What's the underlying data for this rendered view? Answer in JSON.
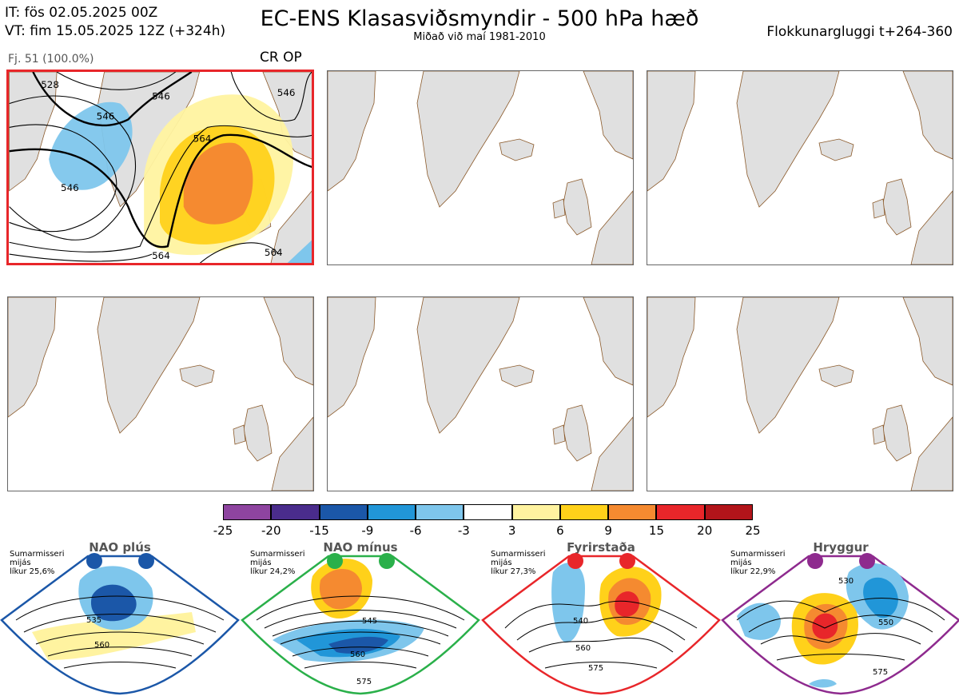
{
  "header": {
    "title": "EC-ENS Klasasviðsmyndir - 500 hPa hæð",
    "subtitle": "Miðað við maí 1981-2010",
    "initial_time": "IT: fös 02.05.2025 00Z",
    "valid_time": "VT: fim 15.05.2025 12Z  (+324h)",
    "cluster_window": "Flokkunargluggi t+264-360"
  },
  "panel1": {
    "member_label": "Fj. 51 (100.0%)",
    "tag": "CR OP",
    "contour_labels": [
      "546",
      "546",
      "546",
      "564",
      "564",
      "564",
      "528",
      "546"
    ]
  },
  "colorbar": {
    "ticks": [
      "-25",
      "-20",
      "-15",
      "-9",
      "-6",
      "-3",
      "3",
      "6",
      "9",
      "15",
      "20",
      "25"
    ],
    "colors": [
      "#8e44a0",
      "#4a2c8c",
      "#1b57a8",
      "#2196d8",
      "#7ec6ec",
      "#ffffff",
      "#fff3a0",
      "#ffd11a",
      "#f58a30",
      "#e8262a",
      "#b2141a"
    ]
  },
  "regimes": [
    {
      "name": "NAO plús",
      "season": "Sumarmisseri",
      "region": "mijás",
      "prob": "líkur 25,6%",
      "color": "#1b57a8",
      "labels": [
        "535",
        "560"
      ]
    },
    {
      "name": "NAO mínus",
      "season": "Sumarmisseri",
      "region": "mijás",
      "prob": "líkur 24,2%",
      "color": "#2ab04a",
      "labels": [
        "545",
        "560",
        "575"
      ]
    },
    {
      "name": "Fyrirstaða",
      "season": "Sumarmisseri",
      "region": "mijás",
      "prob": "líkur 27,3%",
      "color": "#e8262a",
      "labels": [
        "540",
        "560",
        "575"
      ]
    },
    {
      "name": "Hryggur",
      "season": "Sumarmisseri",
      "region": "mijás",
      "prob": "líkur 22,9%",
      "color": "#8e2a8e",
      "labels": [
        "530",
        "550",
        "575"
      ]
    }
  ]
}
